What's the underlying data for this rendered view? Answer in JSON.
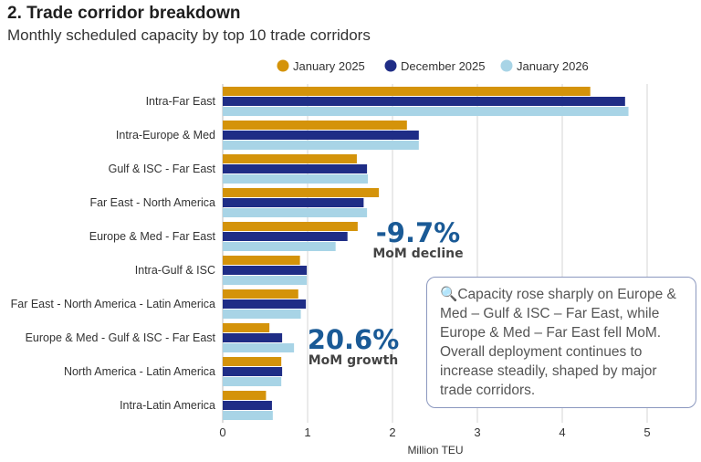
{
  "title": "2. Trade corridor breakdown",
  "subtitle": "Monthly scheduled capacity by top 10 trade corridors",
  "chart_data": {
    "type": "bar",
    "orientation": "horizontal",
    "categories": [
      "Intra-Far East",
      "Intra-Europe & Med",
      "Gulf & ISC - Far East",
      "Far East - North America",
      "Europe & Med - Far East",
      "Intra-Gulf & ISC",
      "Far East - North America - Latin America",
      "Europe & Med - Gulf & ISC - Far East",
      "North America - Latin America",
      "Intra-Latin America"
    ],
    "series": [
      {
        "name": "January 2025",
        "color": "#d4930a",
        "values": [
          4.33,
          2.17,
          1.58,
          1.84,
          1.59,
          0.91,
          0.89,
          0.55,
          0.69,
          0.51
        ]
      },
      {
        "name": "December 2025",
        "color": "#1f2d86",
        "values": [
          4.74,
          2.31,
          1.7,
          1.66,
          1.47,
          0.99,
          0.98,
          0.7,
          0.7,
          0.58
        ]
      },
      {
        "name": "January 2026",
        "color": "#a8d4e6",
        "values": [
          4.78,
          2.31,
          1.71,
          1.7,
          1.33,
          0.99,
          0.92,
          0.84,
          0.69,
          0.59
        ]
      }
    ],
    "xlabel": "Million TEU",
    "ylabel": "",
    "xlim": [
      0,
      5.2
    ],
    "xticks": [
      "0",
      "1",
      "2",
      "3",
      "4",
      "5"
    ],
    "grid": true,
    "legend_position": "top"
  },
  "annotations": [
    {
      "value": "-9.7%",
      "label": "MoM decline"
    },
    {
      "value": "20.6%",
      "label": "MoM growth"
    }
  ],
  "callout": {
    "icon": "magnifier-icon",
    "text": "Capacity rose sharply on Europe & Med – Gulf & ISC – Far East, while Europe & Med – Far East fell MoM. Overall deployment continues to increase steadily, shaped by major trade corridors."
  }
}
